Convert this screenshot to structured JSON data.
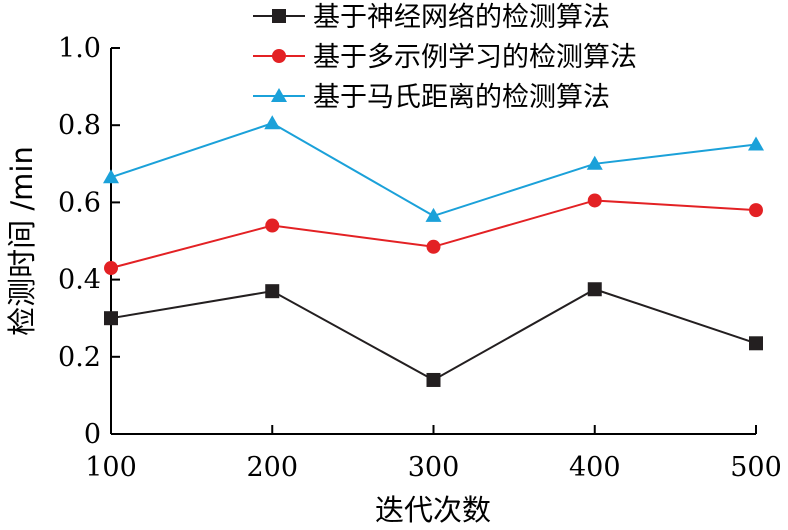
{
  "chart_data": {
    "type": "line",
    "title": "",
    "xlabel": "迭代次数",
    "ylabel": "检测时间 /min",
    "x": [
      100,
      200,
      300,
      400,
      500
    ],
    "xticks": [
      "100",
      "200",
      "300",
      "400",
      "500"
    ],
    "xlim": [
      100,
      500
    ],
    "ylim": [
      0,
      1.0
    ],
    "yticks": [
      "0",
      "0.2",
      "0.4",
      "0.6",
      "0.8",
      "1.0"
    ],
    "grid": false,
    "legend_position": "top-right",
    "series": [
      {
        "name": "基于神经网络的检测算法",
        "values": [
          0.3,
          0.37,
          0.14,
          0.375,
          0.235
        ],
        "color": "#231f20",
        "marker": "square"
      },
      {
        "name": "基于多示例学习的检测算法",
        "values": [
          0.43,
          0.54,
          0.485,
          0.605,
          0.58
        ],
        "color": "#e32124",
        "marker": "circle"
      },
      {
        "name": "基于马氏距离的检测算法",
        "values": [
          0.665,
          0.805,
          0.565,
          0.7,
          0.75
        ],
        "color": "#1ba1d9",
        "marker": "triangle"
      }
    ]
  }
}
